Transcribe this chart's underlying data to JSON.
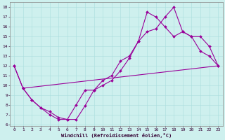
{
  "xlabel": "Windchill (Refroidissement éolien,°C)",
  "bg_color": "#cef0ee",
  "line_color": "#990099",
  "xlim": [
    -0.5,
    23.5
  ],
  "ylim": [
    5.8,
    18.5
  ],
  "xticks": [
    0,
    1,
    2,
    3,
    4,
    5,
    6,
    7,
    8,
    9,
    10,
    11,
    12,
    13,
    14,
    15,
    16,
    17,
    18,
    19,
    20,
    21,
    22,
    23
  ],
  "yticks": [
    6,
    7,
    8,
    9,
    10,
    11,
    12,
    13,
    14,
    15,
    16,
    17,
    18
  ],
  "line1_x": [
    0,
    1,
    2,
    3,
    4,
    5,
    6,
    7,
    8,
    9,
    10,
    11,
    12,
    13,
    14,
    15,
    16,
    17,
    18,
    19,
    20,
    21,
    22,
    23
  ],
  "line1_y": [
    12,
    9.7,
    8.5,
    7.7,
    7.3,
    6.7,
    6.5,
    8.0,
    9.5,
    9.5,
    10.5,
    11.0,
    12.5,
    13.0,
    14.5,
    17.5,
    17.0,
    16.0,
    15.0,
    15.5,
    15.0,
    13.5,
    13.0,
    12.0
  ],
  "line2_x": [
    0,
    1,
    2,
    3,
    4,
    5,
    6,
    7,
    8,
    9,
    10,
    11,
    12,
    13,
    14,
    15,
    16,
    17,
    18,
    19,
    20,
    21,
    22,
    23
  ],
  "line2_y": [
    12,
    9.7,
    8.5,
    7.7,
    7.0,
    6.5,
    6.5,
    6.5,
    7.9,
    9.5,
    10.0,
    10.5,
    11.5,
    12.8,
    14.5,
    15.5,
    15.8,
    17.0,
    18.0,
    15.5,
    15.0,
    15.0,
    14.0,
    12.0
  ],
  "line3_x": [
    1,
    23
  ],
  "line3_y": [
    9.7,
    12.0
  ],
  "marker": "D",
  "marker_size": 2.0,
  "linewidth": 0.8
}
